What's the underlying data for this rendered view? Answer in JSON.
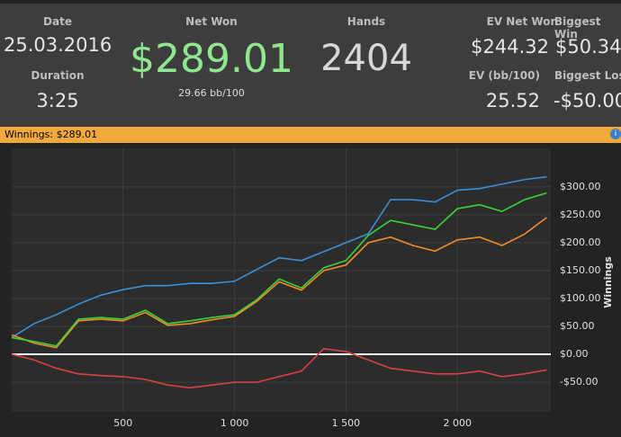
{
  "header": {
    "date_label": "Date",
    "date": "25.03.2016",
    "duration_label": "Duration",
    "duration": "3:25",
    "net_won_label": "Net Won",
    "net_won": "$289.01",
    "net_won_rate": "29.66 bb/100",
    "hands_label": "Hands",
    "hands": "2404",
    "ev_net_won_label": "EV Net Won",
    "ev_net_won": "$244.32",
    "ev_bb_label": "EV (bb/100)",
    "ev_bb": "25.52",
    "biggest_win_label": "Biggest Win",
    "biggest_win": "$50.34",
    "biggest_loss_label": "Biggest Loss",
    "biggest_loss": "-$50.00"
  },
  "chart_bar": "Winnings: $289.01",
  "chart_data": {
    "type": "line",
    "y_label": "Winnings",
    "x": [
      0,
      100,
      200,
      300,
      400,
      500,
      600,
      700,
      800,
      900,
      1000,
      1100,
      1200,
      1300,
      1400,
      1500,
      1600,
      1700,
      1800,
      1900,
      2000,
      2100,
      2200,
      2300,
      2400
    ],
    "series": [
      {
        "color": "#3b8fd6",
        "values": [
          30,
          55,
          71,
          90,
          106,
          116,
          123,
          123,
          127,
          127,
          131,
          152,
          173,
          168,
          184,
          200,
          216,
          277,
          277,
          273,
          294,
          297,
          305,
          313,
          318
        ]
      },
      {
        "color": "#f08c2a",
        "values": [
          35,
          20,
          12,
          60,
          63,
          60,
          75,
          52,
          55,
          62,
          68,
          95,
          130,
          115,
          150,
          160,
          200,
          210,
          195,
          185,
          205,
          210,
          195,
          215,
          245
        ]
      },
      {
        "color": "#39d339",
        "values": [
          30,
          23,
          15,
          63,
          66,
          63,
          79,
          55,
          60,
          66,
          71,
          98,
          135,
          119,
          155,
          168,
          213,
          240,
          232,
          224,
          261,
          268,
          256,
          277,
          289
        ]
      },
      {
        "color": "#d94040",
        "values": [
          0,
          -10,
          -25,
          -35,
          -38,
          -40,
          -45,
          -55,
          -60,
          -55,
          -50,
          -50,
          -40,
          -30,
          10,
          5,
          -10,
          -25,
          -30,
          -35,
          -35,
          -30,
          -40,
          -35,
          -28
        ]
      }
    ],
    "xlim": [
      0,
      2419
    ],
    "ylim": [
      -103,
      369
    ],
    "xticks": [
      500,
      {
        "value": 1000,
        "label": "1 000"
      },
      {
        "value": 1500,
        "label": "1 500"
      },
      {
        "value": 2000,
        "label": "2 000"
      }
    ],
    "yticks": [
      {
        "value": -50,
        "label": "-$50.00"
      },
      {
        "value": 0,
        "label": "$0.00"
      },
      {
        "value": 50,
        "label": "$50.00"
      },
      {
        "value": 100,
        "label": "$100.00"
      },
      {
        "value": 150,
        "label": "$150.00"
      },
      {
        "value": 200,
        "label": "$200.00"
      },
      {
        "value": 250,
        "label": "$250.00"
      },
      {
        "value": 300,
        "label": "$300.00"
      }
    ],
    "grid": true
  }
}
